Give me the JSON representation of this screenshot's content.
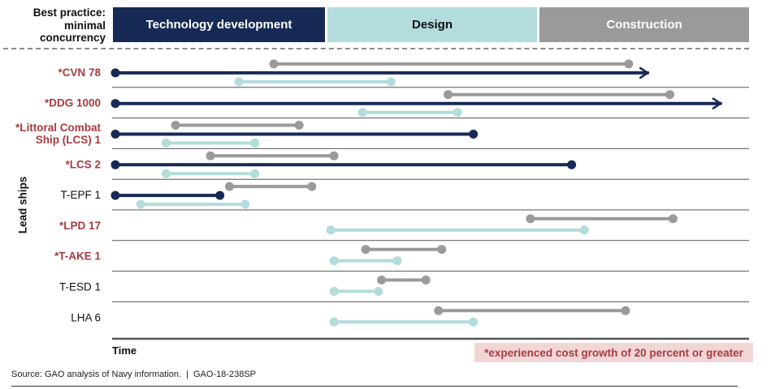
{
  "header": {
    "best_practice_label": [
      "Best practice:",
      "minimal",
      "concurrency"
    ],
    "phases": {
      "technology": "Technology development",
      "design": "Design",
      "construction": "Construction"
    }
  },
  "colors": {
    "technology": "#172a55",
    "design": "#b3dcdc",
    "construction": "#9a9a9a",
    "cost_growth_text": "#a83b40",
    "cost_growth_bg": "#f2d6d6"
  },
  "chart_data": {
    "type": "gantt",
    "ylabel": "Lead ships",
    "xlabel": "Time",
    "note": "*experienced cost growth of 20 percent or greater",
    "ships": [
      {
        "label": [
          "*CVN 78"
        ],
        "cost_growth": true,
        "construction": [
          0.25,
          0.81
        ],
        "technology": [
          0.0,
          0.84
        ],
        "technology_ongoing": true,
        "design": [
          0.195,
          0.435
        ]
      },
      {
        "label": [
          "*DDG 1000"
        ],
        "cost_growth": true,
        "construction": [
          0.525,
          0.875
        ],
        "technology": [
          0.0,
          0.955
        ],
        "technology_ongoing": true,
        "design": [
          0.39,
          0.54
        ]
      },
      {
        "label": [
          "*Littoral Combat",
          "Ship (LCS) 1"
        ],
        "cost_growth": true,
        "construction": [
          0.095,
          0.29
        ],
        "technology": [
          0.0,
          0.565
        ],
        "technology_ongoing": false,
        "design": [
          0.08,
          0.22
        ]
      },
      {
        "label": [
          "*LCS 2"
        ],
        "cost_growth": true,
        "construction": [
          0.15,
          0.345
        ],
        "technology": [
          0.0,
          0.72
        ],
        "technology_ongoing": false,
        "design": [
          0.08,
          0.22
        ]
      },
      {
        "label": [
          "T-EPF 1"
        ],
        "cost_growth": false,
        "construction": [
          0.18,
          0.31
        ],
        "technology": [
          0.0,
          0.165
        ],
        "technology_ongoing": false,
        "design": [
          0.04,
          0.205
        ]
      },
      {
        "label": [
          "*LPD 17"
        ],
        "cost_growth": true,
        "construction": [
          0.655,
          0.88
        ],
        "technology": null,
        "technology_ongoing": false,
        "design": [
          0.34,
          0.74
        ]
      },
      {
        "label": [
          "*T-AKE 1"
        ],
        "cost_growth": true,
        "construction": [
          0.395,
          0.515
        ],
        "technology": null,
        "technology_ongoing": false,
        "design": [
          0.345,
          0.445
        ]
      },
      {
        "label": [
          "T-ESD 1"
        ],
        "cost_growth": false,
        "construction": [
          0.42,
          0.49
        ],
        "technology": null,
        "technology_ongoing": false,
        "design": [
          0.345,
          0.415
        ]
      },
      {
        "label": [
          "LHA 6"
        ],
        "cost_growth": false,
        "construction": [
          0.51,
          0.805
        ],
        "technology": null,
        "technology_ongoing": false,
        "design": [
          0.345,
          0.565
        ]
      }
    ]
  },
  "footer": {
    "source": "Source: GAO analysis of Navy information.",
    "separator": "|",
    "report_id": "GAO-18-238SP"
  }
}
